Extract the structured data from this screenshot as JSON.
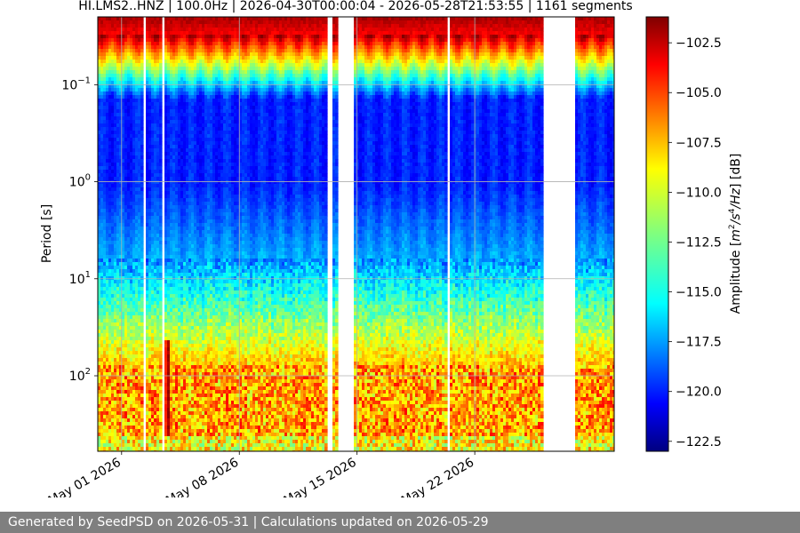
{
  "chart_data": {
    "type": "heatmap",
    "title": "HI.LMS2..HNZ | 100.0Hz | 2026-04-30T00:00:04 - 2026-05-28T21:53:55 | 1161 segments",
    "ylabel": "Period [s]",
    "y_scale": "log",
    "y_inverted": true,
    "y_range": [
      0.02,
      600
    ],
    "y_ticks": [
      {
        "value": 0.1,
        "base": "10",
        "exp": "−1"
      },
      {
        "value": 1,
        "base": "10",
        "exp": "0"
      },
      {
        "value": 10,
        "base": "10",
        "exp": "1"
      },
      {
        "value": 100,
        "base": "10",
        "exp": "2"
      }
    ],
    "x_range": [
      "2026-04-29T14:00:00",
      "2026-05-30T07:00:00"
    ],
    "x_ticks": [
      {
        "date": "2026-05-01",
        "label": "May 01 2026"
      },
      {
        "date": "2026-05-08",
        "label": "May 08 2026"
      },
      {
        "date": "2026-05-15",
        "label": "May 15 2026"
      },
      {
        "date": "2026-05-22",
        "label": "May 22 2026"
      }
    ],
    "data_gaps": [
      [
        "2026-05-02T06:00:00",
        "2026-05-02T09:00:00"
      ],
      [
        "2026-05-03T11:00:00",
        "2026-05-03T14:00:00"
      ],
      [
        "2026-05-13T05:00:00",
        "2026-05-13T12:00:00"
      ],
      [
        "2026-05-13T21:00:00",
        "2026-05-14T21:00:00"
      ],
      [
        "2026-05-20T09:00:00",
        "2026-05-20T14:00:00"
      ],
      [
        "2026-05-26T00:00:00",
        "2026-05-28T00:00:00"
      ]
    ],
    "grid": true,
    "colorbar": {
      "label": "Amplitude [m²/s⁴/Hz] [dB]",
      "label_main": "Amplitude [",
      "label_m": "m",
      "label_2": "2",
      "label_s": "/s",
      "label_4": "4",
      "label_hz": "/Hz",
      "label_end": "] [dB]",
      "colormap": "jet",
      "range": [
        -123.0,
        -101.2
      ],
      "ticks": [
        {
          "value": -102.5,
          "label": "−102.5"
        },
        {
          "value": -105.0,
          "label": "−105.0"
        },
        {
          "value": -107.5,
          "label": "−107.5"
        },
        {
          "value": -110.0,
          "label": "−110.0"
        },
        {
          "value": -112.5,
          "label": "−112.5"
        },
        {
          "value": -115.0,
          "label": "−115.0"
        },
        {
          "value": -117.5,
          "label": "−117.5"
        },
        {
          "value": -120.0,
          "label": "−120.0"
        },
        {
          "value": -122.5,
          "label": "−122.5"
        }
      ]
    }
  },
  "footer": {
    "text": "Generated by SeedPSD on 2026-05-31 | Calculations updated on 2026-05-29"
  }
}
